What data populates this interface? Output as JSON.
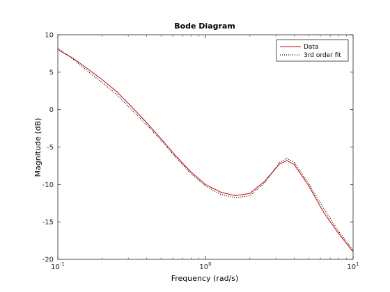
{
  "chart_data": {
    "type": "line",
    "title": "Bode Diagram",
    "xlabel": "Frequency  (rad/s)",
    "ylabel": "Magnitude (dB)",
    "xscale": "log",
    "xlim": [
      0.1,
      10
    ],
    "ylim": [
      -20,
      10
    ],
    "x_ticks": [
      {
        "value": 0.1,
        "base": "10",
        "exp": "-1"
      },
      {
        "value": 1,
        "base": "10",
        "exp": "0"
      },
      {
        "value": 10,
        "base": "10",
        "exp": "1"
      }
    ],
    "y_ticks": [
      {
        "value": 10,
        "label": "10"
      },
      {
        "value": 5,
        "label": "5"
      },
      {
        "value": 0,
        "label": "0"
      },
      {
        "value": -5,
        "label": "-5"
      },
      {
        "value": -10,
        "label": "-10"
      },
      {
        "value": -15,
        "label": "-15"
      },
      {
        "value": -20,
        "label": "-20"
      }
    ],
    "grid": false,
    "legend_position": "top-right",
    "series": [
      {
        "name": "Data",
        "color": "#cc0000",
        "style": "solid",
        "x": [
          0.1,
          0.126,
          0.158,
          0.2,
          0.251,
          0.316,
          0.398,
          0.501,
          0.631,
          0.794,
          1.0,
          1.259,
          1.585,
          1.995,
          2.512,
          3.162,
          3.548,
          3.981,
          5.012,
          6.31,
          7.943,
          10.0
        ],
        "y": [
          8.0,
          6.9,
          5.5,
          4.0,
          2.4,
          0.4,
          -1.7,
          -3.9,
          -6.2,
          -8.3,
          -10.0,
          -11.0,
          -11.5,
          -11.2,
          -9.6,
          -7.3,
          -6.8,
          -7.3,
          -10.2,
          -13.7,
          -16.5,
          -19.0
        ]
      },
      {
        "name": "3rd order fit",
        "color": "#000000",
        "style": "dotted",
        "x": [
          0.1,
          0.126,
          0.158,
          0.2,
          0.251,
          0.316,
          0.398,
          0.501,
          0.631,
          0.794,
          1.0,
          1.259,
          1.585,
          1.995,
          2.512,
          3.162,
          3.548,
          3.981,
          5.012,
          6.31,
          7.943,
          10.0
        ],
        "y": [
          8.2,
          6.8,
          5.2,
          3.6,
          2.0,
          0.0,
          -2.0,
          -4.1,
          -6.4,
          -8.5,
          -10.2,
          -11.3,
          -11.8,
          -11.5,
          -9.8,
          -7.1,
          -6.5,
          -7.0,
          -9.9,
          -13.2,
          -16.2,
          -18.8
        ]
      }
    ]
  }
}
